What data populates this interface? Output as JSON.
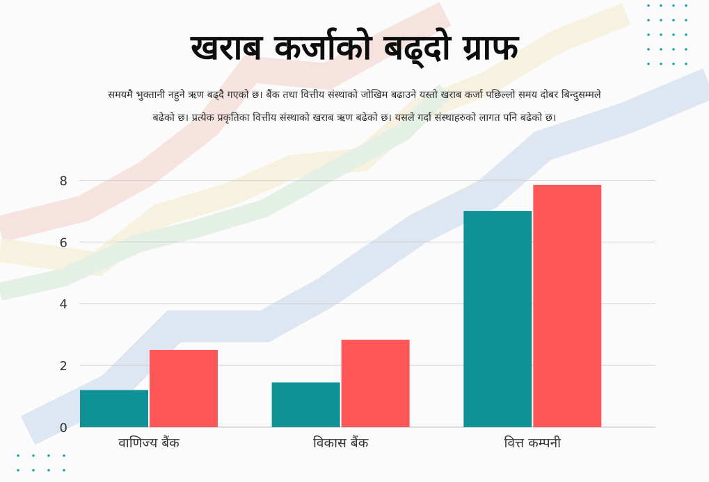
{
  "title": "खराब कर्जाको बढ्दो ग्राफ",
  "description": "समयमै भुक्तानी नहुने ऋण बढ्दै गएको छ। बैंक तथा वित्तीय संस्थाको जोखिम बढाउने यस्तो खराब कर्जा पछिल्लो समय दोबर बिन्दुसम्मले बढेको छ। प्रत्येक प्रकृतिका वित्तीय संस्थाको खराब ऋण बढेको छ। यसले गर्दा संस्थाहरुको लागत पनि बढेको छ।",
  "chart_data": {
    "type": "bar",
    "title": "खराब कर्जाको बढ्दो ग्राफ",
    "xlabel": "",
    "ylabel": "",
    "categories": [
      "वाणिज्य बैंक",
      "विकास बैंक",
      "वित्त कम्पनी"
    ],
    "series": [
      {
        "name": "series-teal",
        "color": "#0f9295",
        "values": [
          1.2,
          1.45,
          7.0
        ]
      },
      {
        "name": "series-red",
        "color": "#ff5757",
        "values": [
          2.5,
          2.83,
          7.85
        ]
      }
    ],
    "yticks": [
      0,
      2,
      4,
      6,
      8
    ],
    "ylim": [
      0,
      8.1
    ],
    "grid": true
  },
  "colors": {
    "accent_teal": "#0f9295",
    "accent_red": "#ff5757",
    "dot_color": "#1aa3a8"
  }
}
